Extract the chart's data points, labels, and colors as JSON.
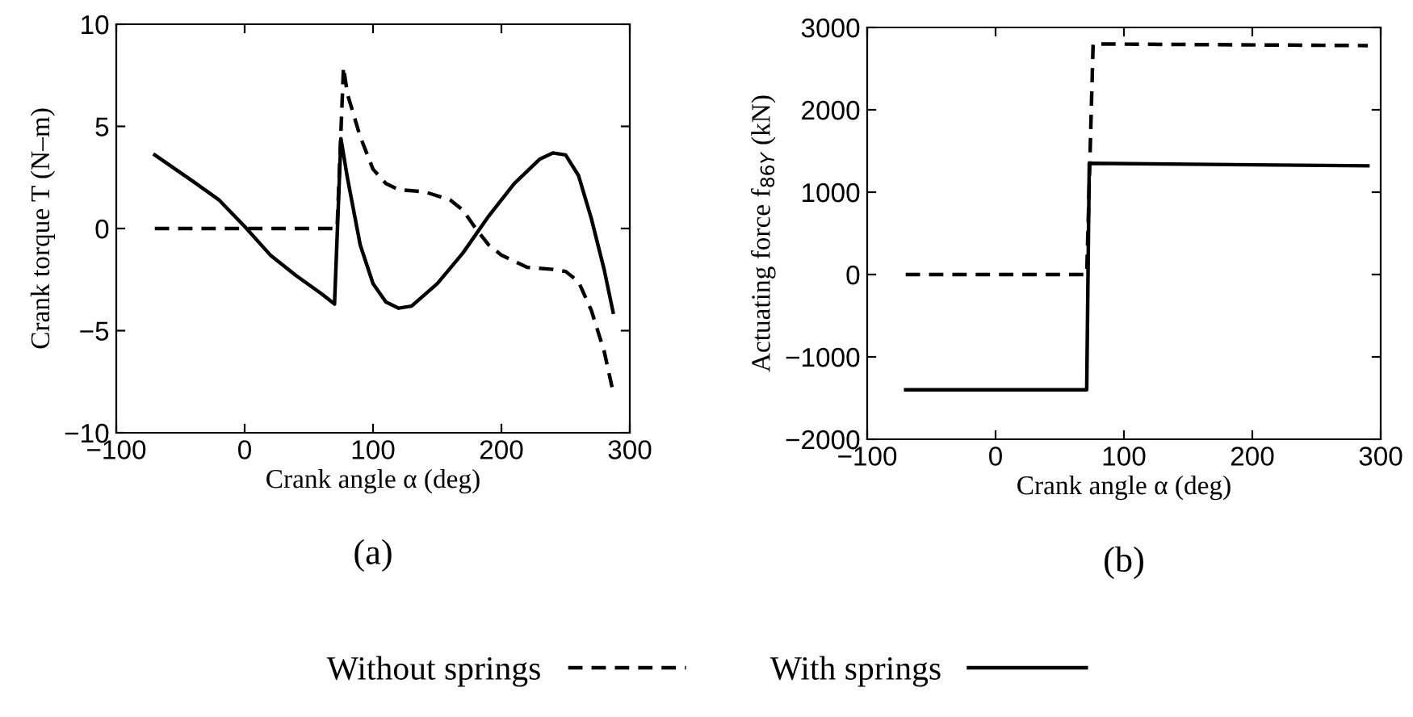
{
  "chart_data": [
    {
      "type": "line",
      "xlabel": "Crank angle α (deg)",
      "ylabel": "Crank torque T (N–m)",
      "annotations": [
        "(a)"
      ],
      "xlim": [
        -100,
        300
      ],
      "xticks": [
        -100,
        0,
        100,
        200,
        300
      ],
      "ylim": [
        -10,
        10
      ],
      "yticks": [
        -10,
        -5,
        0,
        5,
        10
      ],
      "grid": false,
      "legend": "bottom",
      "series": [
        {
          "name": "Without springs",
          "color": "#000000",
          "line_style": "dashed",
          "x": [
            -70,
            72,
            77,
            80,
            90,
            100,
            110,
            120,
            140,
            160,
            170,
            180,
            190,
            200,
            220,
            240,
            250,
            260,
            270,
            280,
            287
          ],
          "values": [
            0,
            0,
            7.9,
            6.6,
            4.5,
            2.9,
            2.2,
            1.9,
            1.8,
            1.4,
            0.9,
            0.0,
            -0.8,
            -1.3,
            -1.9,
            -2.0,
            -2.1,
            -2.6,
            -4.0,
            -6.0,
            -8.0
          ]
        },
        {
          "name": "With springs",
          "color": "#000000",
          "line_style": "solid",
          "x": [
            -70,
            -40,
            -20,
            0,
            20,
            40,
            60,
            70,
            75,
            80,
            90,
            100,
            110,
            120,
            130,
            150,
            170,
            190,
            210,
            230,
            240,
            250,
            260,
            270,
            280,
            287
          ],
          "values": [
            3.6,
            2.3,
            1.4,
            0.1,
            -1.3,
            -2.3,
            -3.2,
            -3.7,
            4.4,
            2.5,
            -0.8,
            -2.7,
            -3.6,
            -3.9,
            -3.8,
            -2.7,
            -1.2,
            0.6,
            2.2,
            3.4,
            3.7,
            3.6,
            2.6,
            0.5,
            -2.0,
            -4.1
          ]
        }
      ]
    },
    {
      "type": "line",
      "xlabel": "Crank angle α (deg)",
      "ylabel": "Actuating force f$_{86Y}$ (kN)",
      "annotations": [
        "(b)"
      ],
      "xlim": [
        -100,
        300
      ],
      "xticks": [
        -100,
        0,
        100,
        200,
        300
      ],
      "ylim": [
        -2000,
        3000
      ],
      "yticks": [
        -2000,
        -1000,
        0,
        1000,
        2000,
        3000
      ],
      "grid": false,
      "series": [
        {
          "color": "#000000",
          "line_style": "dashed",
          "x": [
            -70,
            71,
            76,
            290
          ],
          "values": [
            0,
            0,
            2800,
            2780
          ]
        },
        {
          "color": "#000000",
          "line_style": "solid",
          "x": [
            -70,
            71,
            73,
            290
          ],
          "values": [
            -1400,
            -1400,
            1350,
            1320
          ]
        }
      ]
    }
  ]
}
